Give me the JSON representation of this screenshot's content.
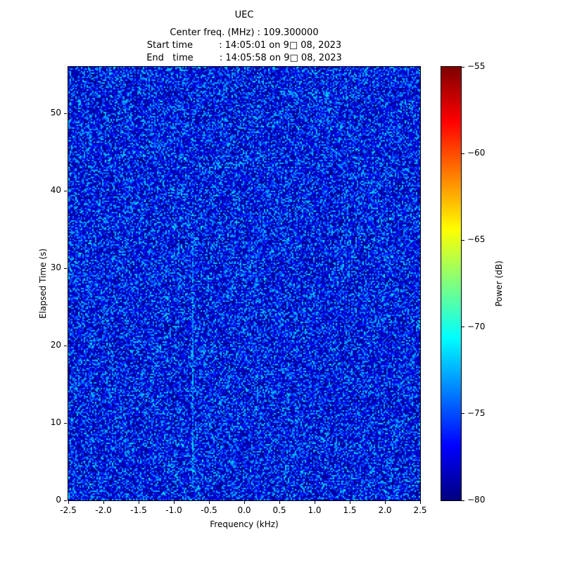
{
  "header": {
    "title": "UEC",
    "line_center_freq": "Center freq. (MHz) : 109.300000",
    "line_start_time": "Start time         : 14:05:01 on 9□ 08, 2023",
    "line_end_time": "End   time         : 14:05:58 on 9□ 08, 2023"
  },
  "chart_data": {
    "type": "heatmap",
    "title": "UEC",
    "center_freq_mhz": 109.3,
    "start_time_text": "14:05:01 on 9□ 08, 2023",
    "end_time_text": "14:05:58 on 9□ 08, 2023",
    "xlabel": "Frequency (kHz)",
    "ylabel": "Elapsed Time (s)",
    "x_range": [
      -2.5,
      2.5
    ],
    "y_range": [
      0,
      56
    ],
    "x_ticks": [
      {
        "v": -2.5,
        "label": "-2.5"
      },
      {
        "v": -2.0,
        "label": "-2.0"
      },
      {
        "v": -1.5,
        "label": "-1.5"
      },
      {
        "v": -1.0,
        "label": "-1.0"
      },
      {
        "v": -0.5,
        "label": "-0.5"
      },
      {
        "v": 0.0,
        "label": "0.0"
      },
      {
        "v": 0.5,
        "label": "0.5"
      },
      {
        "v": 1.0,
        "label": "1.0"
      },
      {
        "v": 1.5,
        "label": "1.5"
      },
      {
        "v": 2.0,
        "label": "2.0"
      },
      {
        "v": 2.5,
        "label": "2.5"
      }
    ],
    "y_ticks": [
      {
        "v": 0,
        "label": "0"
      },
      {
        "v": 10,
        "label": "10"
      },
      {
        "v": 20,
        "label": "20"
      },
      {
        "v": 30,
        "label": "30"
      },
      {
        "v": 40,
        "label": "40"
      },
      {
        "v": 50,
        "label": "50"
      }
    ],
    "colorbar": {
      "label": "Power (dB)",
      "range_db": [
        -80,
        -55
      ],
      "colormap": "jet",
      "ticks": [
        {
          "v": -55,
          "label": "−55"
        },
        {
          "v": -60,
          "label": "−60"
        },
        {
          "v": -65,
          "label": "−65"
        },
        {
          "v": -70,
          "label": "−70"
        },
        {
          "v": -75,
          "label": "−75"
        },
        {
          "v": -80,
          "label": "−80"
        }
      ]
    },
    "background_noise": {
      "floor_db": -80,
      "typical_range_db": [
        -80,
        -70
      ],
      "appearance": "dense blue speckle noise (jet colormap low end) with scattered cyan specks"
    },
    "features": [
      {
        "type": "vertical_signal_line",
        "freq_khz": -0.74,
        "time_span_s": [
          2,
          33
        ],
        "approx_power_db": -70,
        "appearance": "faint narrow cyan vertical line"
      }
    ],
    "grid": false,
    "legend": null
  }
}
